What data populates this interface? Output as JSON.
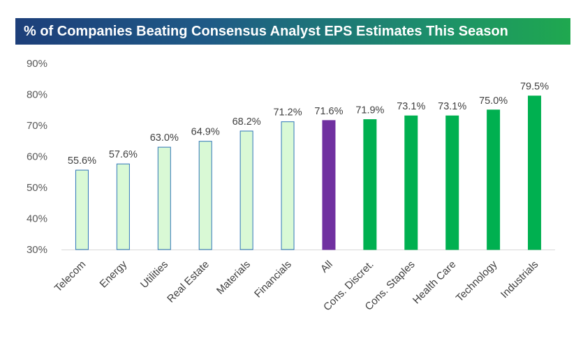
{
  "chart_data": {
    "type": "bar",
    "title": "% of Companies Beating Consensus Analyst EPS Estimates This Season",
    "categories": [
      "Telecom",
      "Energy",
      "Utilities",
      "Real Estate",
      "Materials",
      "Financials",
      "All",
      "Cons. Discret.",
      "Cons. Staples",
      "Health Care",
      "Technology",
      "Industrials"
    ],
    "values": [
      55.6,
      57.6,
      63.0,
      64.9,
      68.2,
      71.2,
      71.6,
      71.9,
      73.1,
      73.1,
      75.0,
      79.5
    ],
    "data_labels": [
      "55.6%",
      "57.6%",
      "63.0%",
      "64.9%",
      "68.2%",
      "71.2%",
      "71.6%",
      "71.9%",
      "73.1%",
      "73.1%",
      "75.0%",
      "79.5%"
    ],
    "ylim": [
      30,
      90
    ],
    "yticks": [
      30,
      40,
      50,
      60,
      70,
      80,
      90
    ],
    "ytick_labels": [
      "30%",
      "40%",
      "50%",
      "60%",
      "70%",
      "80%",
      "90%"
    ],
    "grid": false,
    "colors": {
      "below_all_fill": "#d9f9d5",
      "below_all_stroke": "#2e75b6",
      "all": "#7030a0",
      "above_all": "#00b050"
    }
  }
}
